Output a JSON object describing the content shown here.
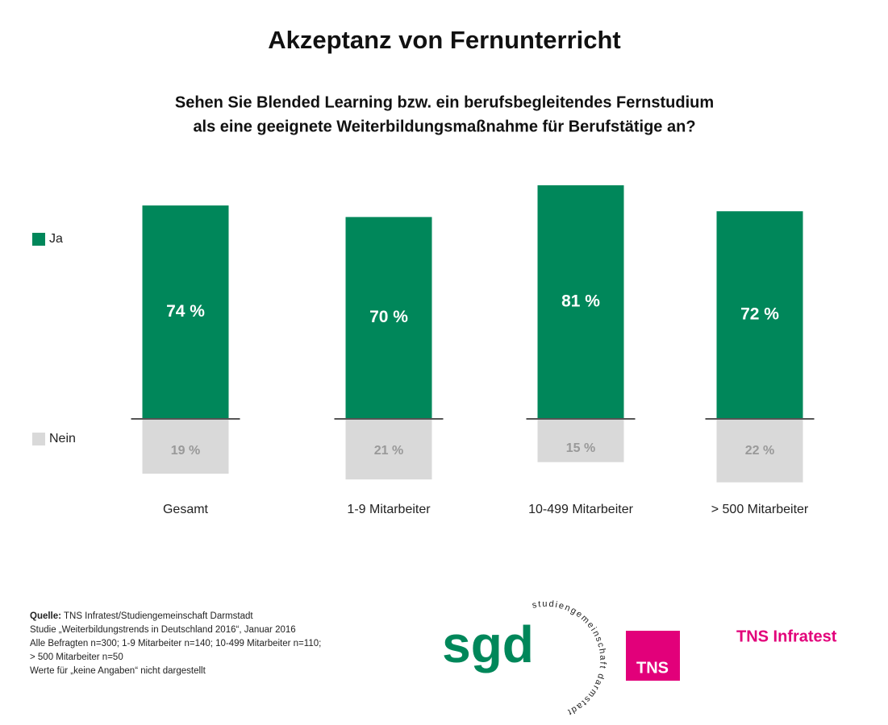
{
  "chart_data": {
    "type": "bar",
    "title": "Akzeptanz von Fernunterricht",
    "subtitle": [
      "Sehen Sie Blended Learning bzw. ein berufsbegleitendes Fernstudium",
      "als eine geeignete Weiterbildungsmaßnahme für Berufstätige an?"
    ],
    "categories": [
      "Gesamt",
      "1-9 Mitarbeiter",
      "10-499 Mitarbeiter",
      "> 500 Mitarbeiter"
    ],
    "series": [
      {
        "name": "Ja",
        "color": "#00875a",
        "values": [
          74,
          70,
          81,
          72
        ],
        "value_labels": [
          "74 %",
          "70 %",
          "81 %",
          "72 %"
        ]
      },
      {
        "name": "Nein",
        "color": "#d9d9d9",
        "values": [
          19,
          21,
          15,
          22
        ],
        "value_labels": [
          "19 %",
          "21 %",
          "15 %",
          "22 %"
        ]
      }
    ]
  },
  "footer": {
    "source_label": "Quelle:",
    "source": "TNS Infratest/Studiengemeinschaft Darmstadt",
    "lines": [
      "Studie „Weiterbildungstrends in Deutschland 2016“, Januar 2016",
      "Alle Befragten n=300; 1-9 Mitarbeiter n=140; 10-499 Mitarbeiter n=110;",
      "> 500 Mitarbeiter n=50",
      "Werte für „keine Angaben“ nicht dargestellt"
    ]
  },
  "logos": {
    "sgd": "sgd",
    "sgd_ring": "studiengemeinschaft darmstadt",
    "tns": "TNS",
    "tns_infratest": "TNS Infratest"
  }
}
